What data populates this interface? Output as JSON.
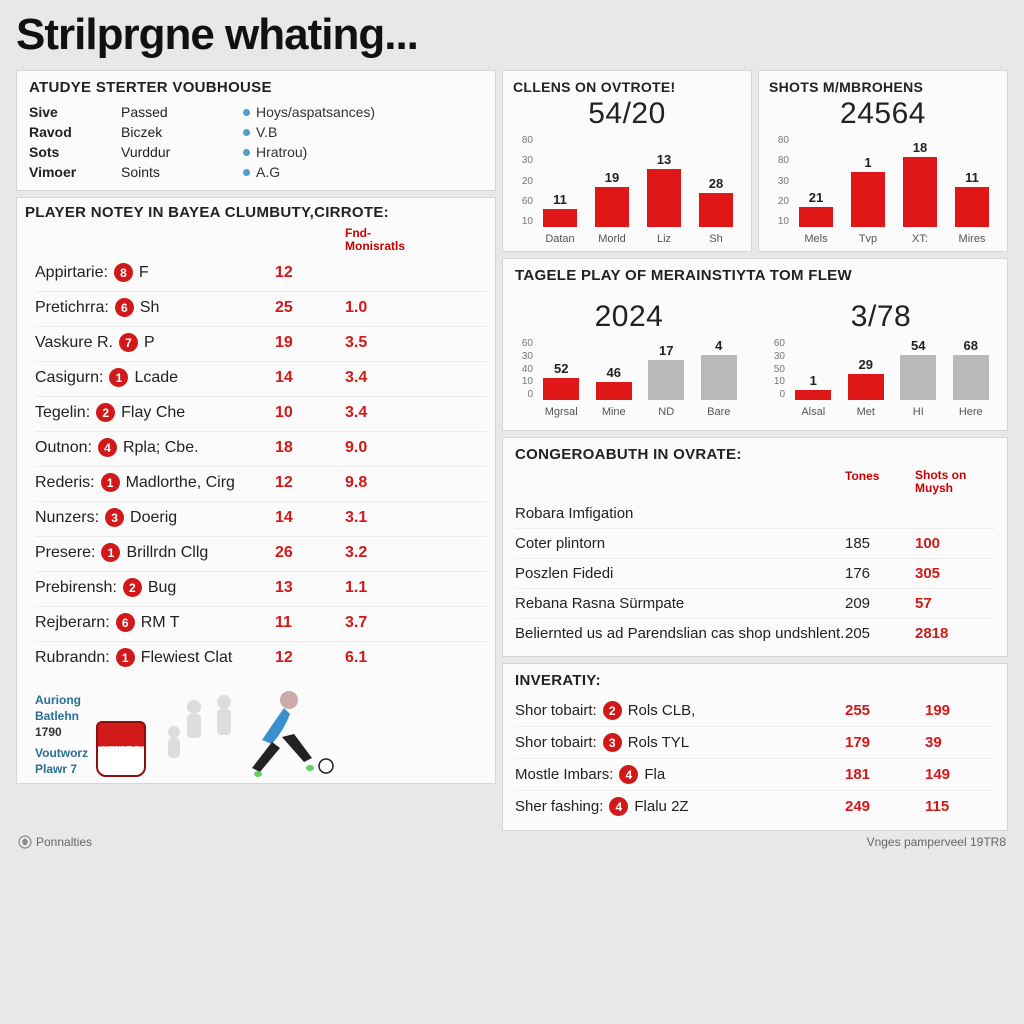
{
  "title": "Strilprgne whating...",
  "colors": {
    "accent": "#d11919",
    "bar_grey": "#b9b9b9",
    "panel_bg": "#fbfbfb",
    "panel_border": "#d6d6d6",
    "page_bg": "#e8e8e8"
  },
  "starter": {
    "title": "ATUDYE STERTER VOUBHOUSE",
    "rows": [
      {
        "c1": "Sive",
        "c2": "Passed",
        "c3": "Hoys/aspatsances)"
      },
      {
        "c1": "Ravod",
        "c2": "Biczek",
        "c3": "V.B"
      },
      {
        "c1": "Sots",
        "c2": "Vurddur",
        "c3": "Hratrou)"
      },
      {
        "c1": "Vimoer",
        "c2": "Soints",
        "c3": "A.G"
      }
    ]
  },
  "players": {
    "title": "PLAYER NOTEY IN BAYEA CLUMBUTY,CIRROTE:",
    "col2_label": "Fnd-\nMonisratls",
    "rows": [
      {
        "name": "Appirtarie:",
        "num": "8",
        "suffix": "F",
        "v1": "12",
        "v2": ""
      },
      {
        "name": "Pretichrra:",
        "num": "6",
        "suffix": "Sh",
        "v1": "25",
        "v2": "1.0"
      },
      {
        "name": "Vaskure R.",
        "num": "7",
        "suffix": "P",
        "v1": "19",
        "v2": "3.5"
      },
      {
        "name": "Casigurn:",
        "num": "1",
        "suffix": "Lcade",
        "v1": "14",
        "v2": "3.4"
      },
      {
        "name": "Tegelin:",
        "num": "2",
        "suffix": "Flay Che",
        "v1": "10",
        "v2": "3.4"
      },
      {
        "name": "Outnon:",
        "num": "4",
        "suffix": "Rpla; Cbe.",
        "v1": "18",
        "v2": "9.0"
      },
      {
        "name": "Rederis:",
        "num": "1",
        "suffix": "Madlorthe, Cirg",
        "v1": "12",
        "v2": "9.8"
      },
      {
        "name": "Nunzers:",
        "num": "3",
        "suffix": "Doerig",
        "v1": "14",
        "v2": "3.1"
      },
      {
        "name": "Presere:",
        "num": "1",
        "suffix": "Brillrdn Cllg",
        "v1": "26",
        "v2": "3.2"
      },
      {
        "name": "Prebirensh:",
        "num": "2",
        "suffix": "Bug",
        "v1": "13",
        "v2": "1.1"
      },
      {
        "name": "Rejberarn:",
        "num": "6",
        "suffix": "RM T",
        "v1": "11",
        "v2": "3.7"
      },
      {
        "name": "Rubrandn:",
        "num": "1",
        "suffix": "Flewiest Clat",
        "v1": "12",
        "v2": "6.1"
      }
    ]
  },
  "charts": {
    "row1": [
      {
        "title": "CLLENS ON OVTROTE!",
        "big": "54/20",
        "yticks": [
          "10",
          "60",
          "20",
          "30",
          "80"
        ],
        "bars": [
          {
            "label": "Datan",
            "v": 11,
            "h": 18
          },
          {
            "label": "Morld",
            "v": 19,
            "h": 40
          },
          {
            "label": "Liz",
            "v": 13,
            "h": 58
          },
          {
            "label": "Sh",
            "v": 28,
            "h": 34
          }
        ],
        "bar_color": "#e01717",
        "height": 110
      },
      {
        "title": "SHOTS M/MBROHENS",
        "big": "24564",
        "yticks": [
          "10",
          "20",
          "30",
          "80",
          "80"
        ],
        "bars": [
          {
            "label": "Mels",
            "v": 21,
            "h": 20
          },
          {
            "label": "Tvp",
            "v": 1,
            "h": 55
          },
          {
            "label": "XT:",
            "v": 18,
            "h": 70
          },
          {
            "label": "Mires",
            "v": 11,
            "h": 40
          }
        ],
        "bar_color": "#e01717",
        "height": 110
      }
    ],
    "row2_title": "TAGELE PLAY OF MERAINSTIYTA TOM FLEW",
    "row2": [
      {
        "big": "2024",
        "yticks": [
          "0",
          "10",
          "40",
          "30",
          "60"
        ],
        "bars": [
          {
            "label": "Mgrsal",
            "v": 52,
            "h": 22,
            "grey": false
          },
          {
            "label": "Mine",
            "v": 46,
            "h": 18,
            "grey": false
          },
          {
            "label": "ND",
            "v": 17,
            "h": 40,
            "grey": true
          },
          {
            "label": "Bare",
            "v": 4,
            "h": 56,
            "grey": true
          }
        ],
        "height": 80
      },
      {
        "big": "3/78",
        "yticks": [
          "0",
          "10",
          "50",
          "30",
          "60"
        ],
        "bars": [
          {
            "label": "Alsal",
            "v": 1,
            "h": 10,
            "grey": false
          },
          {
            "label": "Met",
            "v": 29,
            "h": 26,
            "grey": false
          },
          {
            "label": "HI",
            "v": 54,
            "h": 60,
            "grey": true
          },
          {
            "label": "Here",
            "v": 68,
            "h": 62,
            "grey": true
          }
        ],
        "height": 80
      }
    ]
  },
  "stats": {
    "title": "CONGEROABUTH IN OVRATE:",
    "col2": "Tones",
    "col3": "Shots on\nMuysh",
    "rows": [
      {
        "s1": "Robara Imfigation",
        "s2": "",
        "s3": ""
      },
      {
        "s1": "Coter plintorn",
        "s2": "185",
        "s3": "100"
      },
      {
        "s1": "Poszlen Fidedi",
        "s2": "176",
        "s3": "305"
      },
      {
        "s1": "Rebana Rasna Sürmpate",
        "s2": "209",
        "s3": "57"
      },
      {
        "s1": "Beliernted us ad Parendslian cas shop undshlent.",
        "s2": "205",
        "s3": "2818"
      }
    ]
  },
  "inveraty": {
    "title": "INVERATIY:",
    "rows": [
      {
        "name": "Shor tobairt:",
        "num": "2",
        "suffix": "Rols CLB,",
        "v1": "255",
        "v2": "199"
      },
      {
        "name": "Shor tobairt:",
        "num": "3",
        "suffix": "Rols TYL",
        "v1": "179",
        "v2": "39"
      },
      {
        "name": "Mostle Imbars:",
        "num": "4",
        "suffix": "Fla",
        "v1": "181",
        "v2": "149"
      },
      {
        "name": "Sher fashing:",
        "num": "4",
        "suffix": "Flalu 2Z",
        "v1": "249",
        "v2": "115"
      }
    ]
  },
  "branding": {
    "crest": "LAWAIDO",
    "lines": [
      "Auriong",
      "Batlehn",
      "1790"
    ],
    "lines2": [
      "Voutworz",
      "Plawr 7"
    ]
  },
  "footer": {
    "left": "Ponnalties",
    "right": "Vnges pamperveel 19TR8"
  }
}
